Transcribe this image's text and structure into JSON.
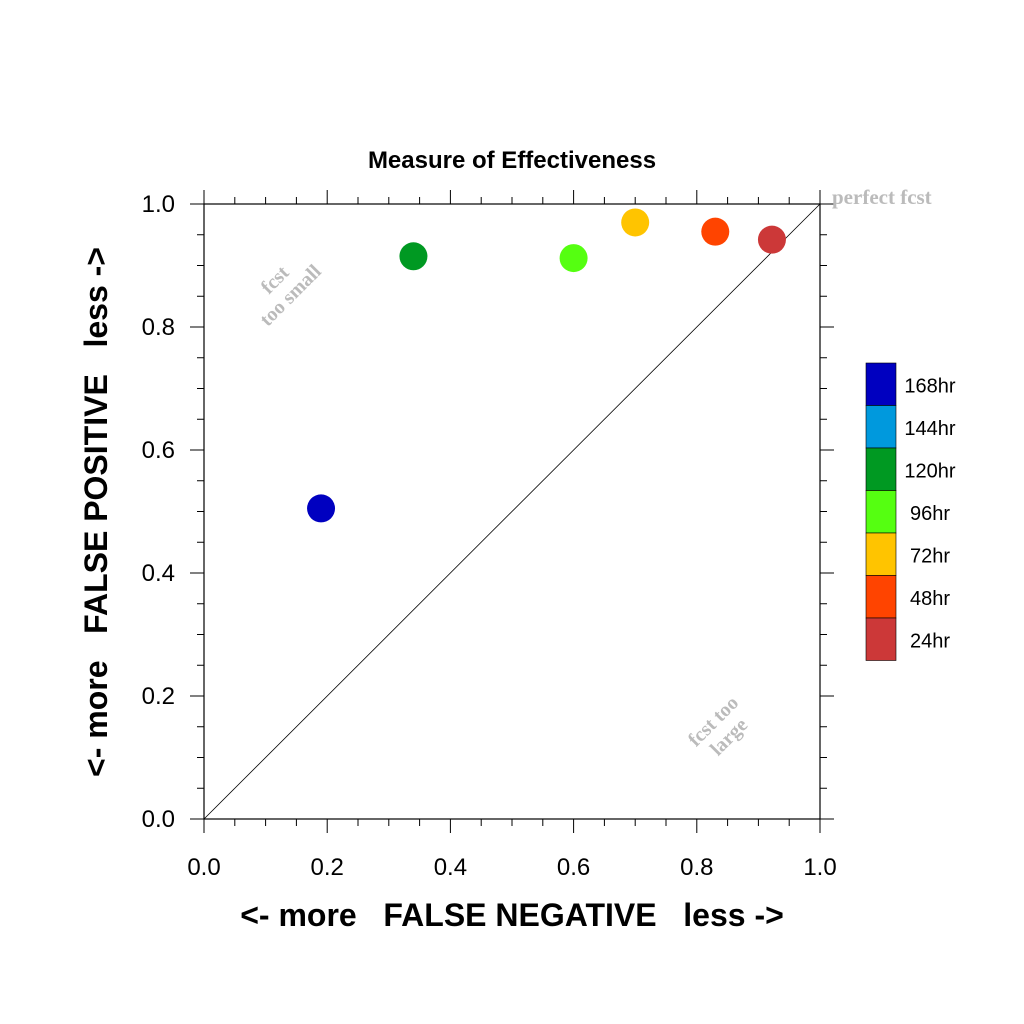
{
  "chart_data": {
    "type": "scatter",
    "title": "Measure of Effectiveness",
    "xlabel": "<- more   FALSE NEGATIVE   less ->",
    "ylabel": "<- more   FALSE POSITIVE   less ->",
    "xlim": [
      0.0,
      1.0
    ],
    "ylim": [
      0.0,
      1.0
    ],
    "x_ticks": [
      "0.0",
      "0.2",
      "0.4",
      "0.6",
      "0.8",
      "1.0"
    ],
    "y_ticks": [
      "0.0",
      "0.2",
      "0.4",
      "0.6",
      "0.8",
      "1.0"
    ],
    "grid": false,
    "diagonal_reference_line": true,
    "legend_position": "right",
    "annotations": {
      "top_left": [
        "fcst",
        "too small"
      ],
      "bottom_right": [
        "fcst too",
        "large"
      ],
      "corner": "perfect fcst"
    },
    "annotation_color": "#bbbbbb",
    "series": [
      {
        "name": "168hr",
        "color": "#0000c0",
        "x": 0.19,
        "y": 0.505
      },
      {
        "name": "144hr",
        "color": "#0099dd",
        "x": null,
        "y": null
      },
      {
        "name": "120hr",
        "color": "#009922",
        "x": 0.34,
        "y": 0.915
      },
      {
        "name": "96hr",
        "color": "#55ff11",
        "x": 0.6,
        "y": 0.912
      },
      {
        "name": "72hr",
        "color": "#ffc400",
        "x": 0.7,
        "y": 0.97
      },
      {
        "name": "48hr",
        "color": "#ff4400",
        "x": 0.83,
        "y": 0.955
      },
      {
        "name": "24hr",
        "color": "#cc3838",
        "x": 0.922,
        "y": 0.942
      }
    ]
  }
}
